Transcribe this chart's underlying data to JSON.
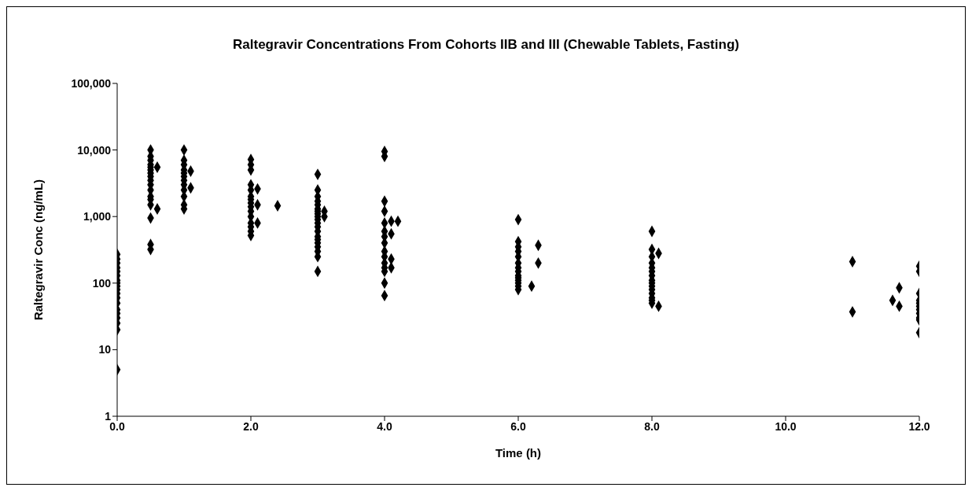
{
  "chart_data": {
    "type": "scatter",
    "title": "Raltegravir Concentrations From Cohorts IIB and III (Chewable Tablets, Fasting)",
    "xlabel": "Time (h)",
    "ylabel": "Raltegravir Conc (ng/mL)",
    "log": "y",
    "grid": false,
    "legend": false,
    "marker": "diamond",
    "xlim": [
      0,
      12
    ],
    "xticks": [
      {
        "value": 0,
        "label": "0.0"
      },
      {
        "value": 2,
        "label": "2.0"
      },
      {
        "value": 4,
        "label": "4.0"
      },
      {
        "value": 6,
        "label": "6.0"
      },
      {
        "value": 8,
        "label": "8.0"
      },
      {
        "value": 10,
        "label": "10.0"
      },
      {
        "value": 12,
        "label": "12.0"
      }
    ],
    "ylim": [
      1,
      100000
    ],
    "yticks": [
      1,
      10,
      {
        "value": 100,
        "label": "100"
      },
      {
        "value": 1000,
        "label": "1,000"
      },
      {
        "value": 10000,
        "label": "10,000"
      },
      {
        "value": 100000,
        "label": "100,000"
      }
    ],
    "series": [
      {
        "color": "#000000",
        "x": [
          0,
          0,
          0,
          0,
          0,
          0,
          0,
          0,
          0,
          0,
          0,
          0,
          0,
          0,
          0,
          0,
          0,
          0,
          0,
          0.5,
          0.5,
          0.5,
          0.5,
          0.5,
          0.5,
          0.5,
          0.5,
          0.5,
          0.5,
          0.5,
          0.5,
          0.5,
          0.5,
          0.5,
          0.5,
          0.5,
          0.6,
          0.6,
          1,
          1,
          1,
          1,
          1,
          1,
          1,
          1,
          1,
          1,
          1,
          1,
          1.1,
          1.1,
          2,
          2,
          2,
          2,
          2,
          2,
          2,
          2,
          2,
          2,
          2,
          2,
          2,
          2,
          2,
          2.1,
          2.1,
          2.1,
          2.4,
          3,
          3,
          3,
          3,
          3,
          3,
          3,
          3,
          3,
          3,
          3,
          3,
          3,
          3,
          3,
          3,
          3,
          3,
          3,
          3,
          3.1,
          3.1,
          4,
          4,
          4,
          4,
          4,
          4,
          4,
          4,
          4,
          4,
          4,
          4,
          4,
          4,
          4,
          4.1,
          4.1,
          4.1,
          4.1,
          4.2,
          6,
          6,
          6,
          6,
          6,
          6,
          6,
          6,
          6,
          6,
          6,
          6,
          6,
          6,
          6.2,
          6.3,
          6.3,
          8,
          8,
          8,
          8,
          8,
          8,
          8,
          8,
          8,
          8,
          8,
          8,
          8,
          8,
          8,
          8.1,
          8.1,
          11,
          11,
          11.6,
          11.7,
          11.7,
          12,
          12,
          12,
          12,
          12,
          12,
          12,
          12,
          12,
          12,
          12
        ],
        "values": [
          270,
          230,
          200,
          170,
          150,
          130,
          110,
          100,
          90,
          80,
          70,
          60,
          50,
          40,
          35,
          30,
          25,
          20,
          5,
          10000,
          8000,
          7000,
          6000,
          5500,
          5000,
          4500,
          4000,
          3500,
          3000,
          2500,
          2000,
          1800,
          1500,
          950,
          380,
          320,
          5500,
          1300,
          10000,
          7000,
          6000,
          5000,
          4500,
          4000,
          3500,
          3000,
          2500,
          2000,
          1500,
          1300,
          4800,
          2700,
          7200,
          6000,
          5000,
          3000,
          2500,
          2000,
          1800,
          1600,
          1400,
          1200,
          1000,
          800,
          700,
          600,
          520,
          2600,
          1500,
          800,
          1450,
          4300,
          2500,
          2000,
          1700,
          1500,
          1300,
          1200,
          1100,
          1000,
          900,
          800,
          700,
          600,
          500,
          450,
          400,
          350,
          300,
          250,
          150,
          1200,
          1000,
          9500,
          8000,
          1700,
          1200,
          800,
          600,
          500,
          400,
          300,
          250,
          200,
          170,
          150,
          100,
          65,
          850,
          550,
          230,
          170,
          850,
          900,
          420,
          350,
          300,
          250,
          200,
          170,
          150,
          130,
          120,
          110,
          100,
          90,
          80,
          90,
          370,
          200,
          600,
          320,
          250,
          200,
          170,
          150,
          130,
          110,
          100,
          90,
          80,
          70,
          60,
          55,
          50,
          280,
          45,
          210,
          37,
          55,
          85,
          45,
          180,
          150,
          70,
          55,
          50,
          45,
          40,
          35,
          30,
          28,
          18
        ]
      }
    ]
  }
}
